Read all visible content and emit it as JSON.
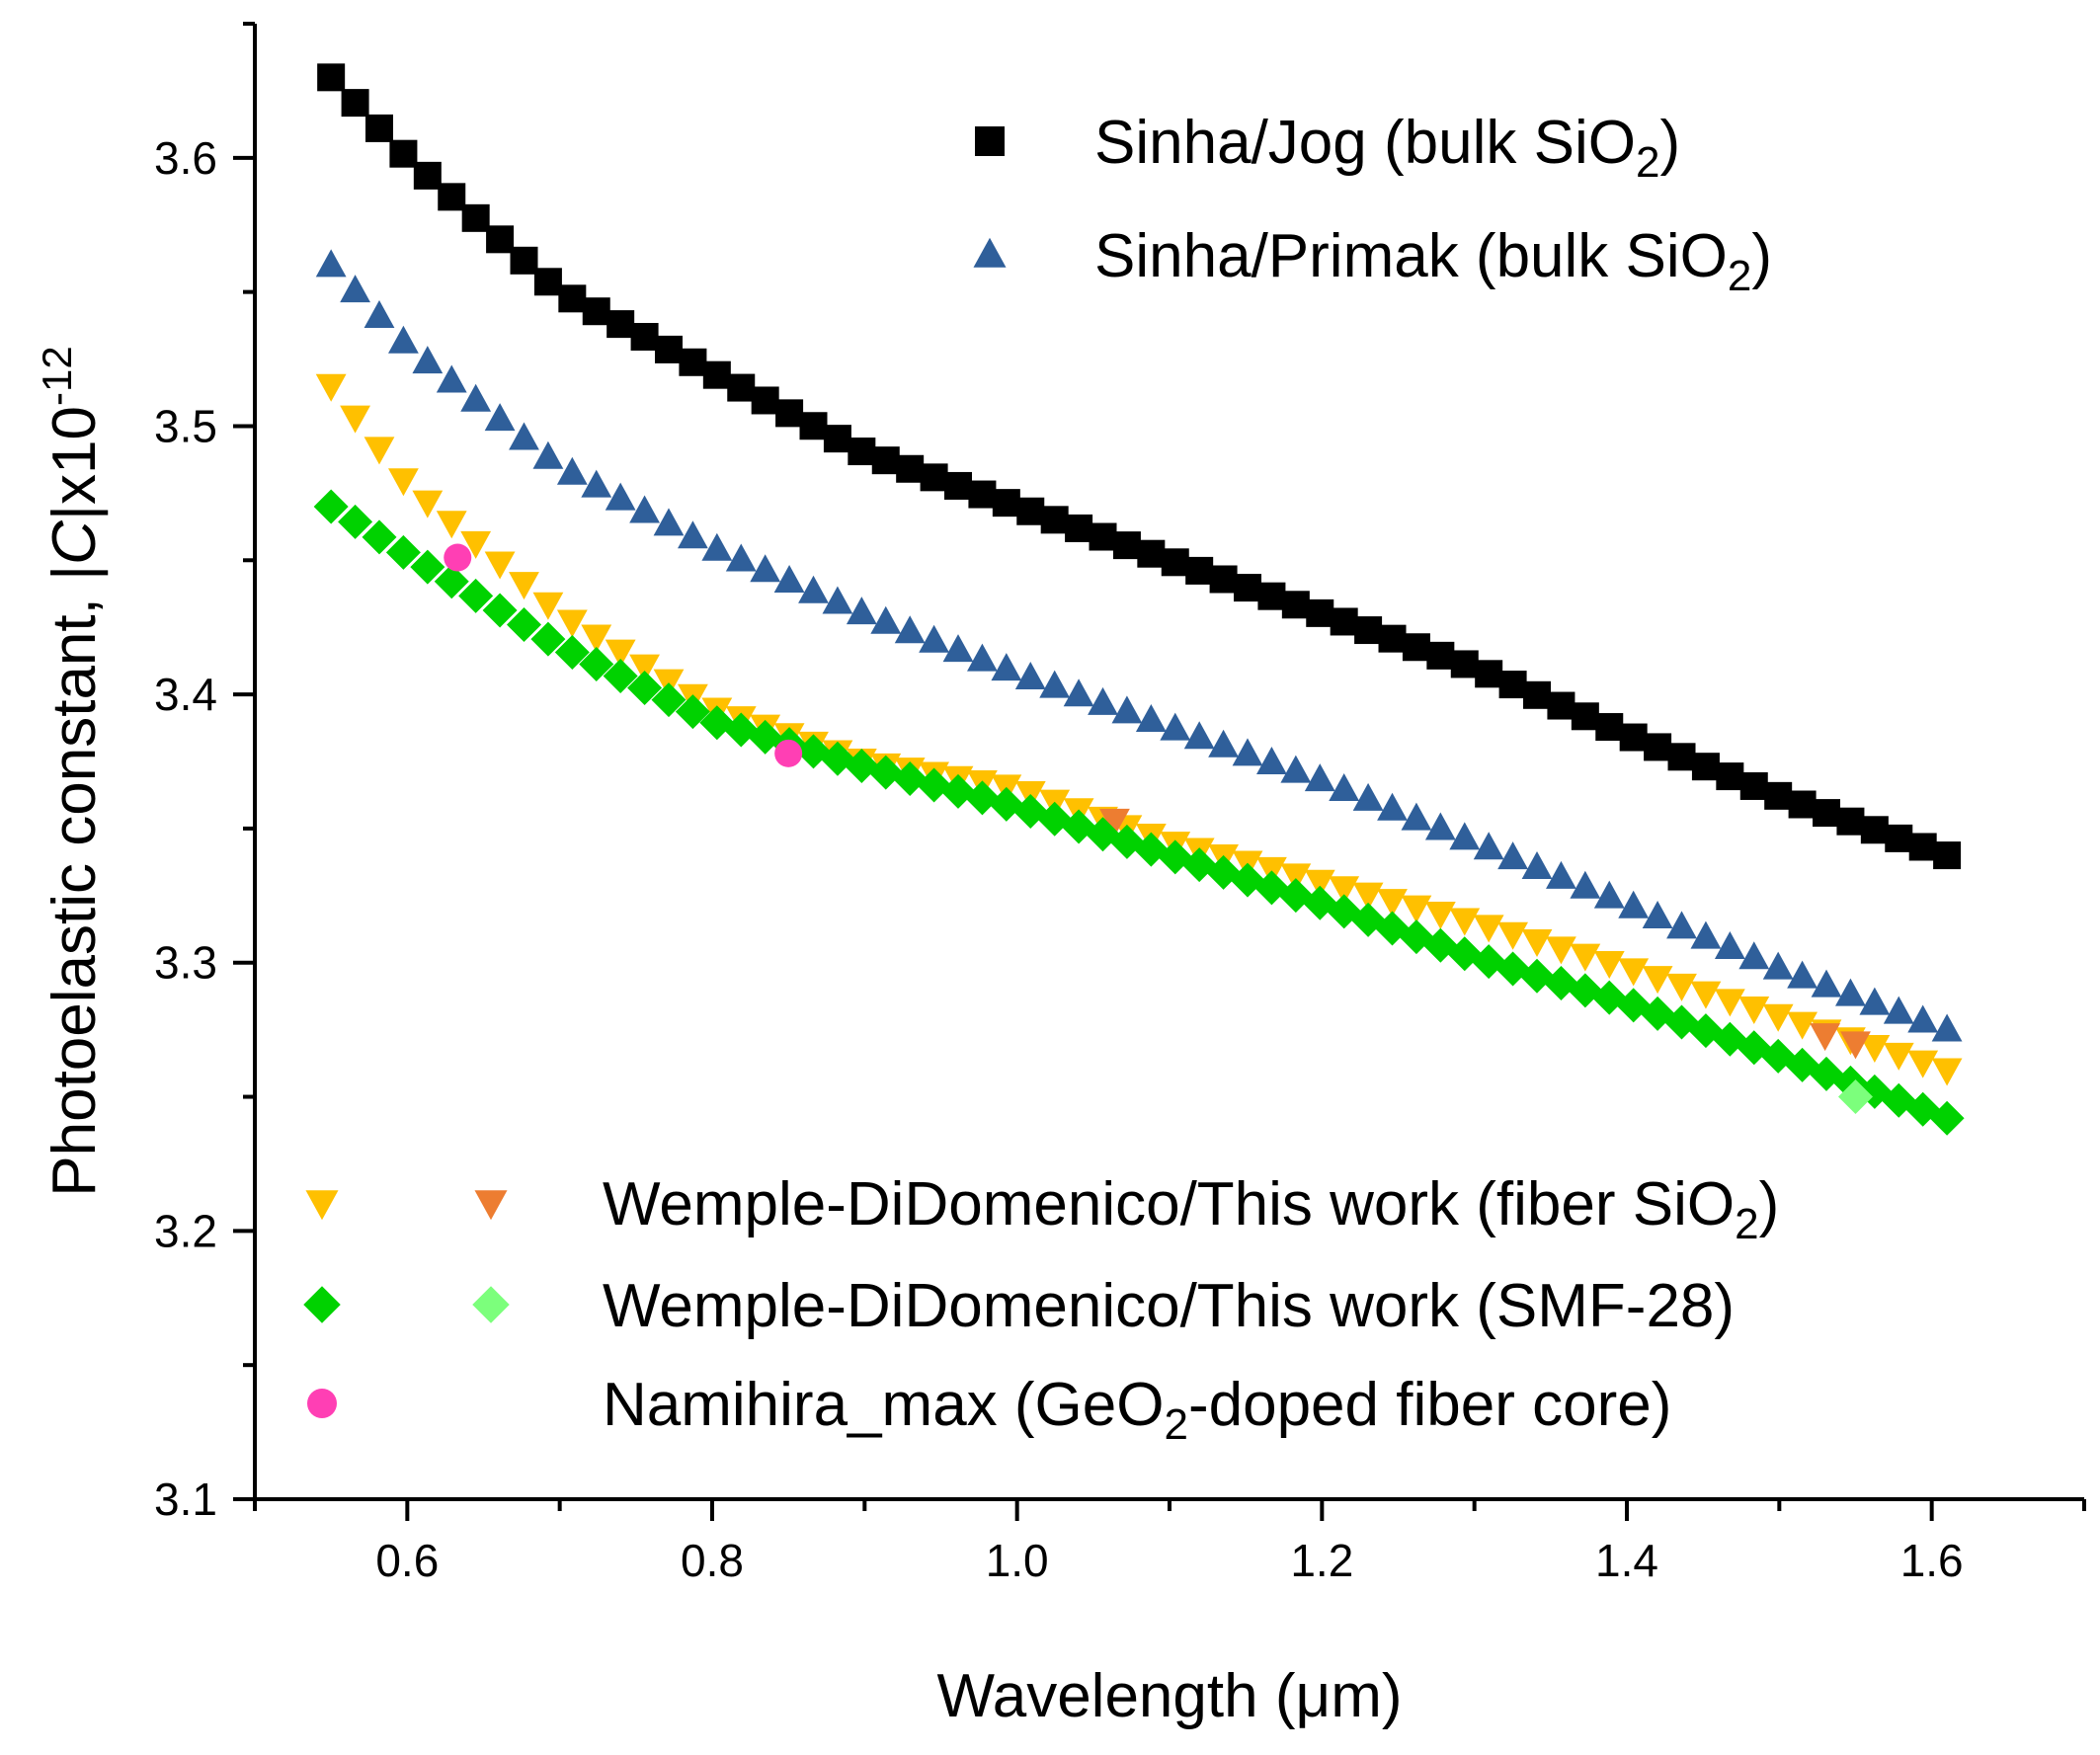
{
  "chart_data": {
    "type": "scatter",
    "xlabel": "Wavelength (μm)",
    "ylabel": {
      "prefix": "Photoelastic constant, |",
      "italic": "C",
      "suffix": "|x10",
      "superscript": "-12"
    },
    "xlim": [
      0.5,
      1.7
    ],
    "ylim": [
      3.1,
      3.65
    ],
    "xticks": [
      0.6,
      0.8,
      1.0,
      1.2,
      1.4,
      1.6
    ],
    "xtick_labels": [
      "0.6",
      "0.8",
      "1.0",
      "1.2",
      "1.4",
      "1.6"
    ],
    "yticks": [
      3.1,
      3.2,
      3.3,
      3.4,
      3.5,
      3.6
    ],
    "ytick_labels": [
      "3.1",
      "3.2",
      "3.3",
      "3.4",
      "3.5",
      "3.6"
    ],
    "series": [
      {
        "name": "Sinha/Jog",
        "marker": "square",
        "color": "#000000",
        "x_start": 0.55,
        "x_end": 1.61,
        "n_points": 68,
        "anchors": [
          [
            0.55,
            3.63
          ],
          [
            0.6,
            3.6
          ],
          [
            0.7,
            3.55
          ],
          [
            0.8,
            3.52
          ],
          [
            0.9,
            3.49
          ],
          [
            1.0,
            3.47
          ],
          [
            1.1,
            3.45
          ],
          [
            1.2,
            3.43
          ],
          [
            1.3,
            3.41
          ],
          [
            1.4,
            3.385
          ],
          [
            1.5,
            3.362
          ],
          [
            1.61,
            3.34
          ]
        ]
      },
      {
        "name": "Sinha/Primak",
        "marker": "triangle-up",
        "color": "#2f5f9a",
        "x_start": 0.55,
        "x_end": 1.61,
        "n_points": 68,
        "anchors": [
          [
            0.55,
            3.56
          ],
          [
            0.6,
            3.53
          ],
          [
            0.7,
            3.485
          ],
          [
            0.8,
            3.455
          ],
          [
            0.9,
            3.43
          ],
          [
            1.0,
            3.408
          ],
          [
            1.1,
            3.388
          ],
          [
            1.2,
            3.368
          ],
          [
            1.3,
            3.345
          ],
          [
            1.4,
            3.322
          ],
          [
            1.5,
            3.298
          ],
          [
            1.61,
            3.275
          ]
        ]
      },
      {
        "name": "Wemple-DiDomenico/This work (fiber SiO2) - yellow",
        "marker": "triangle-down",
        "color": "#ffc000",
        "x_start": 0.55,
        "x_end": 1.61,
        "n_points": 68,
        "anchors": [
          [
            0.55,
            3.515
          ],
          [
            0.6,
            3.478
          ],
          [
            0.7,
            3.43
          ],
          [
            0.8,
            3.395
          ],
          [
            0.9,
            3.375
          ],
          [
            1.0,
            3.365
          ],
          [
            1.1,
            3.345
          ],
          [
            1.2,
            3.33
          ],
          [
            1.3,
            3.315
          ],
          [
            1.4,
            3.298
          ],
          [
            1.5,
            3.28
          ],
          [
            1.61,
            3.26
          ]
        ]
      },
      {
        "name": "Wemple-DiDomenico/This work (fiber SiO2) - orange",
        "marker": "triangle-down",
        "color": "#ed7d31",
        "points": [
          [
            1.064,
            3.353
          ],
          [
            1.53,
            3.273
          ],
          [
            1.55,
            3.27
          ]
        ]
      },
      {
        "name": "Wemple-DiDomenico/This work (SMF-28) - green",
        "marker": "diamond",
        "color": "#00d200",
        "x_start": 0.55,
        "x_end": 1.61,
        "n_points": 68,
        "anchors": [
          [
            0.55,
            3.47
          ],
          [
            0.6,
            3.452
          ],
          [
            0.7,
            3.418
          ],
          [
            0.8,
            3.39
          ],
          [
            0.9,
            3.373
          ],
          [
            1.0,
            3.358
          ],
          [
            1.1,
            3.34
          ],
          [
            1.2,
            3.322
          ],
          [
            1.3,
            3.302
          ],
          [
            1.4,
            3.285
          ],
          [
            1.5,
            3.265
          ],
          [
            1.61,
            3.242
          ]
        ]
      },
      {
        "name": "Wemple-DiDomenico/This work (SMF-28) - light green",
        "marker": "diamond",
        "color": "#7cff7c",
        "points": [
          [
            1.55,
            3.25
          ]
        ]
      },
      {
        "name": "Namihira_max (GeO2-doped fiber core)",
        "marker": "circle",
        "color": "#ff3fb4",
        "points": [
          [
            0.633,
            3.451
          ],
          [
            0.85,
            3.378
          ]
        ]
      }
    ],
    "legend_top": [
      {
        "marker": "square",
        "color": "#000000",
        "text": "Sinha/Jog (bulk SiO",
        "sub": "2",
        "after": ")"
      },
      {
        "marker": "triangle-up",
        "color": "#2f5f9a",
        "text": "Sinha/Primak (bulk SiO",
        "sub": "2",
        "after": ")"
      }
    ],
    "legend_bottom": [
      {
        "markers": [
          {
            "marker": "triangle-down",
            "color": "#ffc000"
          },
          {
            "marker": "triangle-down",
            "color": "#ed7d31"
          }
        ],
        "text": "Wemple-DiDomenico/This work (fiber SiO",
        "sub": "2",
        "after": ")"
      },
      {
        "markers": [
          {
            "marker": "diamond",
            "color": "#00d200"
          },
          {
            "marker": "diamond",
            "color": "#7cff7c"
          }
        ],
        "text": "Wemple-DiDomenico/This work (SMF-28)",
        "sub": "",
        "after": ""
      },
      {
        "markers": [
          {
            "marker": "circle",
            "color": "#ff3fb4"
          }
        ],
        "text": "Namihira_max (GeO",
        "sub": "2",
        "after": "-doped fiber core)"
      }
    ]
  }
}
